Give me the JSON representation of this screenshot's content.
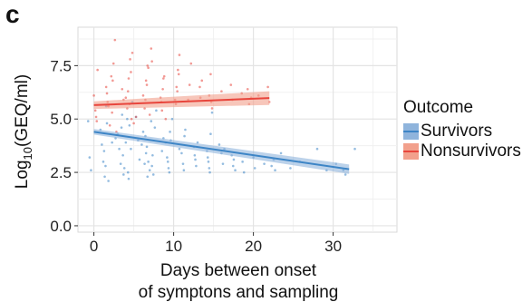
{
  "panel_label": "c",
  "chart_data": {
    "type": "scatter",
    "xlabel_lines": [
      "Days between onset",
      "of symptons and sampling"
    ],
    "ylabel_main": "Log",
    "ylabel_sub": "10",
    "ylabel_rest": "(GEQ/ml)",
    "xlim": [
      -2,
      38
    ],
    "ylim": [
      -0.3,
      9.3
    ],
    "x_ticks": [
      0,
      10,
      20,
      30
    ],
    "y_ticks": [
      0.0,
      2.5,
      5.0,
      7.5
    ],
    "y_tick_labels": [
      "0.0",
      "2.5",
      "5.0",
      "7.5"
    ],
    "grid": true,
    "legend_position": "right",
    "legend_title": "Outcome",
    "series": [
      {
        "name": "Survivors",
        "color": "#3d85c6",
        "band_color": "#8fb4dc",
        "trend": {
          "x": [
            0,
            32
          ],
          "y": [
            4.4,
            2.65
          ]
        },
        "band_halfwidth": [
          0.13,
          0.22
        ],
        "points": [
          [
            0,
            4.9
          ],
          [
            0,
            3.2
          ],
          [
            0,
            2.6
          ],
          [
            1,
            4.5
          ],
          [
            1,
            3.8
          ],
          [
            1,
            3.0
          ],
          [
            1,
            2.3
          ],
          [
            1,
            5.6
          ],
          [
            2,
            4.1
          ],
          [
            2,
            3.5
          ],
          [
            2,
            2.8
          ],
          [
            2,
            4.8
          ],
          [
            2,
            2.1
          ],
          [
            3,
            4.3
          ],
          [
            3,
            3.6
          ],
          [
            3,
            2.9
          ],
          [
            3,
            5.2
          ],
          [
            3,
            2.4
          ],
          [
            3,
            3.9
          ],
          [
            4,
            4.6
          ],
          [
            4,
            3.3
          ],
          [
            4,
            2.7
          ],
          [
            4,
            3.9
          ],
          [
            4,
            5.0
          ],
          [
            4,
            2.2
          ],
          [
            5,
            4.0
          ],
          [
            5,
            3.1
          ],
          [
            5,
            2.5
          ],
          [
            5,
            4.7
          ],
          [
            5,
            3.6
          ],
          [
            5,
            5.8
          ],
          [
            6,
            3.8
          ],
          [
            6,
            4.4
          ],
          [
            6,
            2.9
          ],
          [
            6,
            3.4
          ],
          [
            6,
            2.3
          ],
          [
            6,
            5.1
          ],
          [
            7,
            4.2
          ],
          [
            7,
            3.7
          ],
          [
            7,
            3.0
          ],
          [
            7,
            2.6
          ],
          [
            7,
            4.9
          ],
          [
            7,
            3.3
          ],
          [
            8,
            3.5
          ],
          [
            8,
            4.1
          ],
          [
            8,
            2.8
          ],
          [
            8,
            2.4
          ],
          [
            8,
            4.6
          ],
          [
            8,
            5.4
          ],
          [
            9,
            3.9
          ],
          [
            9,
            3.2
          ],
          [
            9,
            2.7
          ],
          [
            9,
            4.4
          ],
          [
            10,
            3.6
          ],
          [
            10,
            3.0
          ],
          [
            10,
            2.5
          ],
          [
            10,
            4.0
          ],
          [
            10,
            5.0
          ],
          [
            11,
            3.4
          ],
          [
            11,
            2.9
          ],
          [
            11,
            4.2
          ],
          [
            12,
            3.7
          ],
          [
            12,
            3.1
          ],
          [
            12,
            2.6
          ],
          [
            12,
            4.5
          ],
          [
            13,
            3.3
          ],
          [
            13,
            2.8
          ],
          [
            13,
            3.9
          ],
          [
            14,
            3.5
          ],
          [
            14,
            3.0
          ],
          [
            14,
            2.5
          ],
          [
            15,
            3.8
          ],
          [
            15,
            3.2
          ],
          [
            15,
            2.7
          ],
          [
            15,
            4.3
          ],
          [
            15,
            5.3
          ],
          [
            16,
            3.4
          ],
          [
            16,
            2.9
          ],
          [
            16,
            3.6
          ],
          [
            17,
            3.1
          ],
          [
            17,
            2.6
          ],
          [
            18,
            3.3
          ],
          [
            18,
            2.8
          ],
          [
            19,
            3.0
          ],
          [
            19,
            2.5
          ],
          [
            20,
            3.2
          ],
          [
            20,
            2.7
          ],
          [
            21,
            2.9
          ],
          [
            22,
            3.1
          ],
          [
            22,
            2.6
          ],
          [
            23,
            2.8
          ],
          [
            24,
            3.4
          ],
          [
            25,
            2.7
          ],
          [
            26,
            3.0
          ],
          [
            28,
            3.6
          ],
          [
            29,
            2.6
          ],
          [
            30,
            2.9
          ],
          [
            31,
            2.4
          ],
          [
            32,
            3.6
          ],
          [
            32,
            2.6
          ]
        ]
      },
      {
        "name": "Nonsurvivors",
        "color": "#e8453c",
        "band_color": "#f2a08c",
        "trend": {
          "x": [
            0,
            22
          ],
          "y": [
            5.65,
            5.98
          ]
        },
        "band_halfwidth": [
          0.18,
          0.32
        ],
        "points": [
          [
            0,
            6.1
          ],
          [
            0,
            5.4
          ],
          [
            0,
            4.9
          ],
          [
            1,
            6.5
          ],
          [
            1,
            5.8
          ],
          [
            1,
            5.1
          ],
          [
            1,
            7.3
          ],
          [
            2,
            6.2
          ],
          [
            2,
            5.6
          ],
          [
            2,
            4.7
          ],
          [
            2,
            7.0
          ],
          [
            2,
            6.8
          ],
          [
            3,
            6.4
          ],
          [
            3,
            5.9
          ],
          [
            3,
            5.3
          ],
          [
            3,
            7.6
          ],
          [
            3,
            8.7
          ],
          [
            3,
            4.4
          ],
          [
            4,
            6.0
          ],
          [
            4,
            5.5
          ],
          [
            4,
            6.9
          ],
          [
            4,
            7.8
          ],
          [
            4,
            5.0
          ],
          [
            5,
            6.3
          ],
          [
            5,
            5.7
          ],
          [
            5,
            7.2
          ],
          [
            5,
            8.1
          ],
          [
            5,
            4.8
          ],
          [
            6,
            6.1
          ],
          [
            6,
            5.5
          ],
          [
            6,
            6.8
          ],
          [
            6,
            7.5
          ],
          [
            6,
            5.1
          ],
          [
            7,
            5.9
          ],
          [
            7,
            6.6
          ],
          [
            7,
            7.4
          ],
          [
            7,
            5.2
          ],
          [
            7,
            8.3
          ],
          [
            8,
            6.0
          ],
          [
            8,
            5.4
          ],
          [
            8,
            6.9
          ],
          [
            8,
            7.7
          ],
          [
            9,
            5.8
          ],
          [
            9,
            6.4
          ],
          [
            9,
            7.0
          ],
          [
            9,
            5.0
          ],
          [
            10,
            5.9
          ],
          [
            10,
            6.5
          ],
          [
            10,
            7.3
          ],
          [
            10,
            8.0
          ],
          [
            11,
            5.7
          ],
          [
            11,
            6.3
          ],
          [
            11,
            7.1
          ],
          [
            12,
            5.9
          ],
          [
            12,
            6.6
          ],
          [
            12,
            7.6
          ],
          [
            13,
            6.0
          ],
          [
            13,
            6.8
          ],
          [
            14,
            5.8
          ],
          [
            14,
            6.5
          ],
          [
            15,
            6.1
          ],
          [
            15,
            7.1
          ],
          [
            15,
            5.5
          ],
          [
            16,
            6.3
          ],
          [
            17,
            6.6
          ],
          [
            17,
            5.9
          ],
          [
            18,
            6.2
          ],
          [
            19,
            6.0
          ],
          [
            20,
            6.4
          ],
          [
            20,
            5.7
          ],
          [
            21,
            6.1
          ],
          [
            22,
            6.5
          ],
          [
            22,
            5.8
          ]
        ]
      }
    ]
  }
}
